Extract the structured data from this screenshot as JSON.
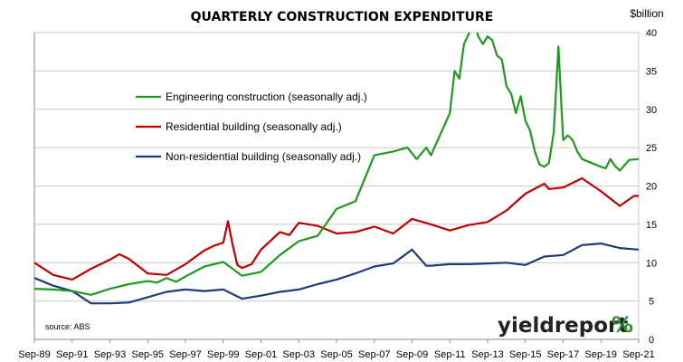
{
  "chart_data": {
    "type": "line",
    "title": "QUARTERLY CONSTRUCTION EXPENDITURE",
    "ylabel": "$billion",
    "ylim": [
      0,
      40
    ],
    "yticks": [
      0,
      5,
      10,
      15,
      20,
      25,
      30,
      35,
      40
    ],
    "y_axis_side": "right",
    "grid": true,
    "legend_position": "upper-left",
    "x_tick_labels": [
      "Sep-89",
      "Sep-91",
      "Sep-93",
      "Sep-95",
      "Sep-97",
      "Sep-99",
      "Sep-01",
      "Sep-03",
      "Sep-05",
      "Sep-07",
      "Sep-09",
      "Sep-11",
      "Sep-13",
      "Sep-15",
      "Sep-17",
      "Sep-19",
      "Sep-21"
    ],
    "x_start": "Sep-89",
    "x_end": "Sep-21",
    "frequency": "quarterly",
    "source_note": "source: ABS",
    "series": [
      {
        "name": "Engineering construction (seasonally adj.)",
        "color": "#1f9a1f",
        "points": [
          [
            "Sep-89",
            6.6
          ],
          [
            "Sep-90",
            6.5
          ],
          [
            "Sep-91",
            6.3
          ],
          [
            "Sep-92",
            5.8
          ],
          [
            "Sep-93",
            6.6
          ],
          [
            "Sep-94",
            7.2
          ],
          [
            "Sep-95",
            7.6
          ],
          [
            "Mar-96",
            7.4
          ],
          [
            "Sep-96",
            8.0
          ],
          [
            "Mar-97",
            7.5
          ],
          [
            "Sep-97",
            8.2
          ],
          [
            "Sep-98",
            9.5
          ],
          [
            "Sep-99",
            10.1
          ],
          [
            "Sep-00",
            8.3
          ],
          [
            "Sep-01",
            8.8
          ],
          [
            "Sep-02",
            11.0
          ],
          [
            "Sep-03",
            12.8
          ],
          [
            "Sep-04",
            13.5
          ],
          [
            "Sep-05",
            17.0
          ],
          [
            "Sep-06",
            18.0
          ],
          [
            "Sep-07",
            24.0
          ],
          [
            "Sep-08",
            24.5
          ],
          [
            "Jun-09",
            25.0
          ],
          [
            "Dec-09",
            23.5
          ],
          [
            "Jun-10",
            25.0
          ],
          [
            "Sep-10",
            24.0
          ],
          [
            "Sep-11",
            29.5
          ],
          [
            "Dec-11",
            35.0
          ],
          [
            "Mar-12",
            34.0
          ],
          [
            "Jun-12",
            38.5
          ],
          [
            "Sep-12",
            39.8
          ],
          [
            "Dec-12",
            42.0
          ],
          [
            "Mar-13",
            39.5
          ],
          [
            "Jun-13",
            38.5
          ],
          [
            "Sep-13",
            39.5
          ],
          [
            "Dec-13",
            39.0
          ],
          [
            "Mar-14",
            37.0
          ],
          [
            "Jun-14",
            36.5
          ],
          [
            "Sep-14",
            33.0
          ],
          [
            "Dec-14",
            32.0
          ],
          [
            "Mar-15",
            29.5
          ],
          [
            "Jun-15",
            31.7
          ],
          [
            "Sep-15",
            28.5
          ],
          [
            "Dec-15",
            27.2
          ],
          [
            "Mar-16",
            24.5
          ],
          [
            "Jun-16",
            22.8
          ],
          [
            "Sep-16",
            22.5
          ],
          [
            "Dec-16",
            23.0
          ],
          [
            "Mar-17",
            27.0
          ],
          [
            "Jun-17",
            38.2
          ],
          [
            "Sep-17",
            26.0
          ],
          [
            "Dec-17",
            26.6
          ],
          [
            "Mar-18",
            26.0
          ],
          [
            "Jun-18",
            24.5
          ],
          [
            "Sep-18",
            23.5
          ],
          [
            "Sep-19",
            22.5
          ],
          [
            "Dec-19",
            22.3
          ],
          [
            "Mar-20",
            23.5
          ],
          [
            "Jun-20",
            22.6
          ],
          [
            "Sep-20",
            22.0
          ],
          [
            "Dec-20",
            22.7
          ],
          [
            "Mar-21",
            23.4
          ],
          [
            "Sep-21",
            23.5
          ]
        ]
      },
      {
        "name": "Residential building (seasonally adj.)",
        "color": "#c00000",
        "points": [
          [
            "Sep-89",
            10.0
          ],
          [
            "Sep-90",
            8.4
          ],
          [
            "Sep-91",
            7.8
          ],
          [
            "Sep-92",
            9.2
          ],
          [
            "Sep-93",
            10.4
          ],
          [
            "Mar-94",
            11.1
          ],
          [
            "Sep-94",
            10.5
          ],
          [
            "Sep-95",
            8.6
          ],
          [
            "Sep-96",
            8.4
          ],
          [
            "Sep-97",
            9.8
          ],
          [
            "Sep-98",
            11.6
          ],
          [
            "Mar-99",
            12.2
          ],
          [
            "Sep-99",
            12.6
          ],
          [
            "Dec-99",
            15.4
          ],
          [
            "Mar-00",
            12.3
          ],
          [
            "Jun-00",
            9.7
          ],
          [
            "Sep-00",
            9.3
          ],
          [
            "Mar-01",
            9.8
          ],
          [
            "Sep-01",
            11.7
          ],
          [
            "Sep-02",
            14.0
          ],
          [
            "Mar-03",
            13.6
          ],
          [
            "Sep-03",
            15.2
          ],
          [
            "Sep-04",
            14.8
          ],
          [
            "Sep-05",
            13.8
          ],
          [
            "Sep-06",
            14.0
          ],
          [
            "Sep-07",
            14.7
          ],
          [
            "Sep-08",
            13.8
          ],
          [
            "Sep-09",
            15.7
          ],
          [
            "Sep-10",
            15.0
          ],
          [
            "Sep-11",
            14.2
          ],
          [
            "Sep-12",
            14.9
          ],
          [
            "Sep-13",
            15.3
          ],
          [
            "Sep-14",
            16.8
          ],
          [
            "Sep-15",
            19.0
          ],
          [
            "Sep-16",
            20.3
          ],
          [
            "Dec-16",
            19.6
          ],
          [
            "Sep-17",
            19.8
          ],
          [
            "Sep-18",
            21.0
          ],
          [
            "Sep-19",
            19.3
          ],
          [
            "Sep-20",
            17.4
          ],
          [
            "Jun-21",
            18.7
          ],
          [
            "Sep-21",
            18.7
          ]
        ]
      },
      {
        "name": "Non-residential building (seasonally adj.)",
        "color": "#1f3a78",
        "points": [
          [
            "Sep-89",
            8.0
          ],
          [
            "Sep-90",
            7.0
          ],
          [
            "Sep-91",
            6.3
          ],
          [
            "Sep-92",
            4.7
          ],
          [
            "Sep-93",
            4.7
          ],
          [
            "Sep-94",
            4.8
          ],
          [
            "Sep-95",
            5.5
          ],
          [
            "Sep-96",
            6.2
          ],
          [
            "Sep-97",
            6.5
          ],
          [
            "Sep-98",
            6.3
          ],
          [
            "Sep-99",
            6.5
          ],
          [
            "Sep-00",
            5.3
          ],
          [
            "Sep-01",
            5.7
          ],
          [
            "Sep-02",
            6.2
          ],
          [
            "Sep-03",
            6.5
          ],
          [
            "Sep-04",
            7.2
          ],
          [
            "Sep-05",
            7.8
          ],
          [
            "Sep-06",
            8.6
          ],
          [
            "Sep-07",
            9.5
          ],
          [
            "Sep-08",
            9.9
          ],
          [
            "Sep-09",
            11.7
          ],
          [
            "Jun-10",
            9.6
          ],
          [
            "Sep-10",
            9.6
          ],
          [
            "Sep-11",
            9.8
          ],
          [
            "Sep-12",
            9.8
          ],
          [
            "Sep-13",
            9.9
          ],
          [
            "Sep-14",
            10.0
          ],
          [
            "Sep-15",
            9.7
          ],
          [
            "Sep-16",
            10.8
          ],
          [
            "Sep-17",
            11.0
          ],
          [
            "Sep-18",
            12.3
          ],
          [
            "Sep-19",
            12.5
          ],
          [
            "Sep-20",
            11.9
          ],
          [
            "Sep-21",
            11.7
          ]
        ]
      }
    ]
  },
  "branding": {
    "logo_text": "yieldreport",
    "logo_symbol": "%"
  }
}
